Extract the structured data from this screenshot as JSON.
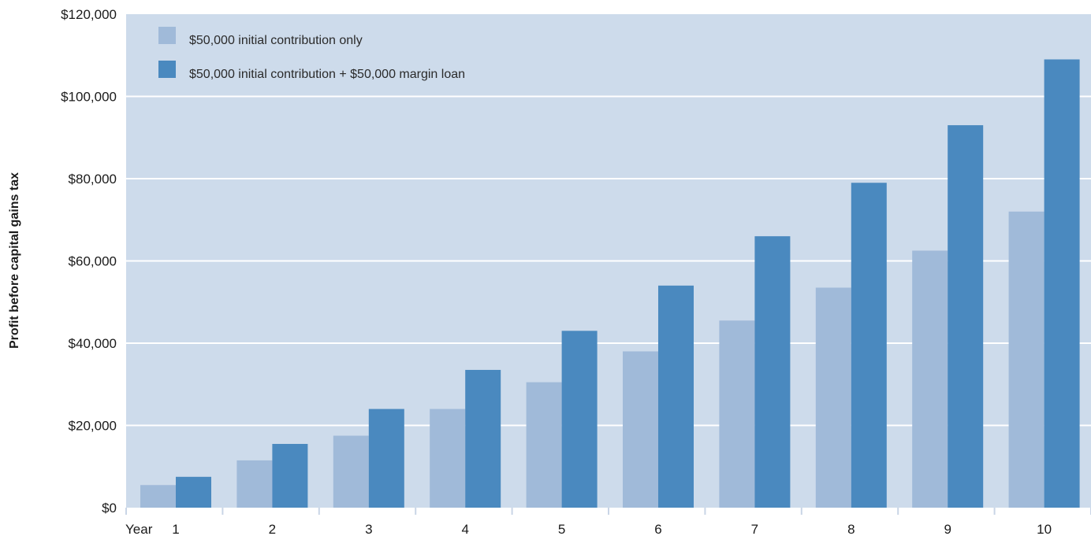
{
  "chart_data": {
    "type": "bar",
    "ylabel": "Profit before capital gains tax",
    "x_prefix_label": "Year",
    "categories": [
      "1",
      "2",
      "3",
      "4",
      "5",
      "6",
      "7",
      "8",
      "9",
      "10"
    ],
    "ylim": [
      0,
      120000
    ],
    "yticks": [
      0,
      20000,
      40000,
      60000,
      80000,
      100000,
      120000
    ],
    "ytick_labels": [
      "$0",
      "$20,000",
      "$40,000",
      "$60,000",
      "$80,000",
      "$100,000",
      "$120,000"
    ],
    "grid": true,
    "legend_position": "top-left",
    "series": [
      {
        "name": "$50,000 initial contribution only",
        "color": "#a0bad9",
        "values": [
          5500,
          11500,
          17500,
          24000,
          30500,
          38000,
          45500,
          53500,
          62500,
          72000
        ]
      },
      {
        "name": "$50,000 initial contribution + $50,000 margin loan",
        "color": "#4a89bf",
        "values": [
          7500,
          15500,
          24000,
          33500,
          43000,
          54000,
          66000,
          79000,
          93000,
          109000
        ]
      }
    ],
    "colors": {
      "plot_background": "#cddbeb",
      "gridline": "#ffffff",
      "axis_tick": "#c9d5e6"
    }
  }
}
